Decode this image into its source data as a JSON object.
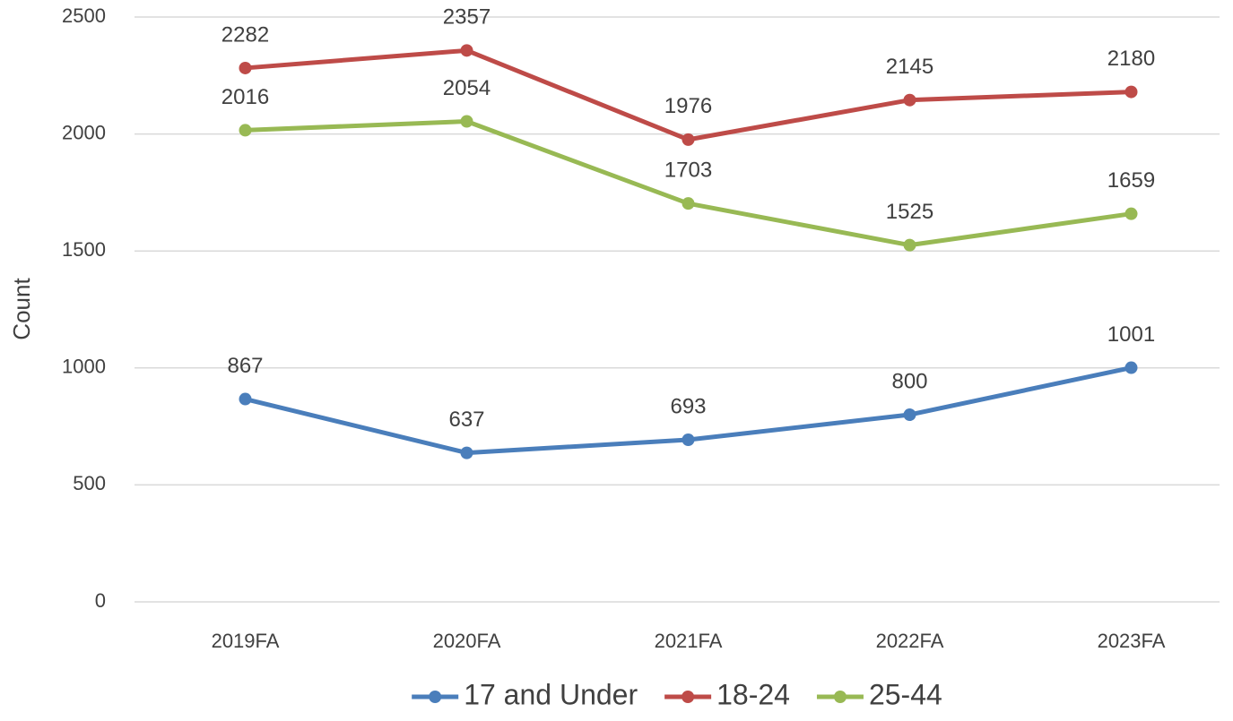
{
  "chart_data": {
    "type": "line",
    "y_label": "Count",
    "categories": [
      "2019FA",
      "2020FA",
      "2021FA",
      "2022FA",
      "2023FA"
    ],
    "series": [
      {
        "name": "17 and Under",
        "color": "#4a7ebb",
        "values": [
          867,
          637,
          693,
          800,
          1001
        ]
      },
      {
        "name": "18-24",
        "color": "#be4b48",
        "values": [
          2282,
          2357,
          1976,
          2145,
          2180
        ]
      },
      {
        "name": "25-44",
        "color": "#98b954",
        "values": [
          2016,
          2054,
          1703,
          1525,
          1659
        ]
      }
    ],
    "ylim": [
      0,
      2500
    ],
    "yticks": [
      0,
      500,
      1000,
      1500,
      2000,
      2500
    ],
    "grid": true,
    "legend": "bottom",
    "data_labels": true
  }
}
